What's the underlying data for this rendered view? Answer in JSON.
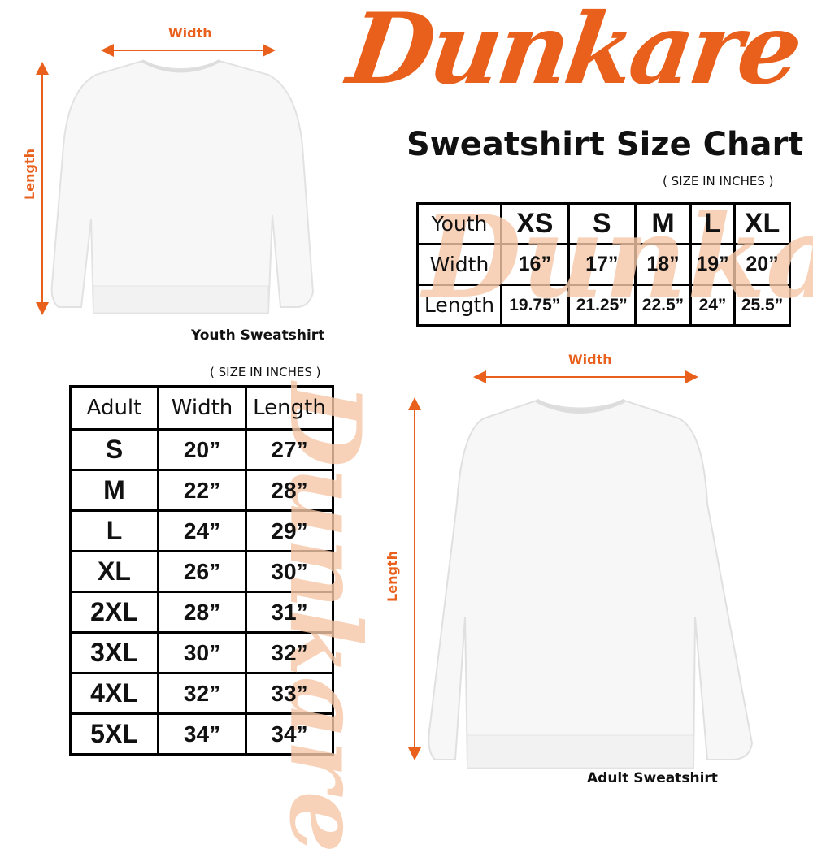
{
  "brand": {
    "logo_text": "Dunkare",
    "color": "#e8601c"
  },
  "title": "Sweatshirt Size Chart",
  "youth": {
    "image_caption": "Youth Sweatshirt",
    "width_label": "Width",
    "length_label": "Length",
    "units_note": "( SIZE IN INCHES )",
    "table": {
      "header": [
        "Youth",
        "XS",
        "S",
        "M",
        "L",
        "XL"
      ],
      "rows": [
        [
          "Width",
          "16”",
          "17”",
          "18”",
          "19”",
          "20”"
        ],
        [
          "Length",
          "19.75”",
          "21.25”",
          "22.5”",
          "24”",
          "25.5”"
        ]
      ]
    }
  },
  "adult": {
    "image_caption": "Adult Sweatshirt",
    "width_label": "Width",
    "length_label": "Length",
    "units_note": "( SIZE IN INCHES )",
    "table": {
      "header": [
        "Adult",
        "Width",
        "Length"
      ],
      "rows": [
        [
          "S",
          "20”",
          "27”"
        ],
        [
          "M",
          "22”",
          "28”"
        ],
        [
          "L",
          "24”",
          "29”"
        ],
        [
          "XL",
          "26”",
          "30”"
        ],
        [
          "2XL",
          "28”",
          "31”"
        ],
        [
          "3XL",
          "30”",
          "32”"
        ],
        [
          "4XL",
          "32”",
          "33”"
        ],
        [
          "5XL",
          "34”",
          "34”"
        ]
      ]
    }
  }
}
